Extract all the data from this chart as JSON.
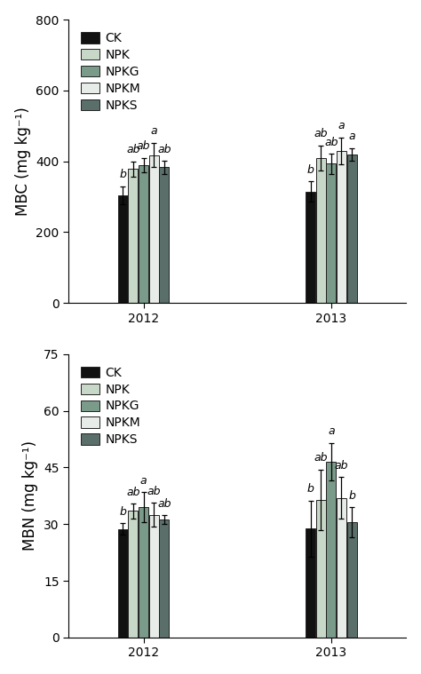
{
  "mbc": {
    "ylabel": "MBC (mg kg⁻¹)",
    "ylim": [
      0,
      800
    ],
    "yticks": [
      0,
      200,
      400,
      600,
      800
    ],
    "values": [
      [
        305,
        378,
        390,
        418,
        383
      ],
      [
        315,
        410,
        393,
        430,
        420
      ]
    ],
    "errors": [
      [
        25,
        22,
        20,
        35,
        18
      ],
      [
        28,
        35,
        28,
        38,
        18
      ]
    ],
    "labels": [
      [
        "b",
        "ab",
        "ab",
        "a",
        "ab"
      ],
      [
        "b",
        "ab",
        "ab",
        "a",
        "a"
      ]
    ]
  },
  "mbn": {
    "ylabel": "MBN (mg kg⁻¹)",
    "ylim": [
      0,
      75
    ],
    "yticks": [
      0,
      15,
      30,
      45,
      60,
      75
    ],
    "values": [
      [
        28.7,
        33.5,
        34.5,
        32.5,
        31.2
      ],
      [
        28.8,
        36.5,
        46.5,
        37.0,
        30.5
      ]
    ],
    "errors": [
      [
        1.5,
        2.0,
        4.0,
        3.2,
        1.2
      ],
      [
        7.5,
        8.0,
        5.0,
        5.5,
        4.0
      ]
    ],
    "labels": [
      [
        "b",
        "ab",
        "a",
        "ab",
        "ab"
      ],
      [
        "b",
        "ab",
        "a",
        "ab",
        "b"
      ]
    ]
  },
  "bar_colors": [
    "#111111",
    "#c8d8c8",
    "#7a9a8a",
    "#e8ece8",
    "#5a6e6a"
  ],
  "legend_labels": [
    "CK",
    "NPK",
    "NPKG",
    "NPKM",
    "NPKS"
  ],
  "years": [
    "2012",
    "2013"
  ],
  "groups": [
    "CK",
    "NPK",
    "NPKG",
    "NPKM",
    "NPKS"
  ],
  "edgecolor": "#222222",
  "bar_width": 0.055,
  "label_fontsize": 9,
  "tick_fontsize": 10,
  "legend_fontsize": 10,
  "ylabel_fontsize": 12
}
